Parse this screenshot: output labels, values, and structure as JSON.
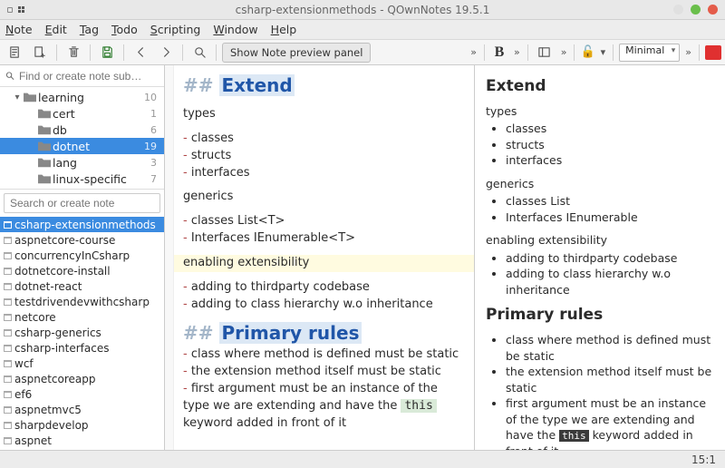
{
  "window": {
    "title": "csharp-extensionmethods - QOwnNotes 19.5.1",
    "close_color": "#e45c4a",
    "min_color": "#e0e0e0",
    "max_color": "#6abf4b"
  },
  "menu": [
    "Note",
    "Edit",
    "Tag",
    "Todo",
    "Scripting",
    "Window",
    "Help"
  ],
  "toolbar": {
    "preview_btn": "Show Note preview panel",
    "layout_sel": "Minimal"
  },
  "sidebar": {
    "find_placeholder": "Find or create note sub…",
    "note_search_placeholder": "Search or create note",
    "tree": [
      {
        "depth": 1,
        "exp": "▾",
        "name": "learning",
        "count": 10,
        "sel": false
      },
      {
        "depth": 2,
        "exp": "",
        "name": "cert",
        "count": 1,
        "sel": false
      },
      {
        "depth": 2,
        "exp": "",
        "name": "db",
        "count": 6,
        "sel": false
      },
      {
        "depth": 2,
        "exp": "",
        "name": "dotnet",
        "count": 19,
        "sel": true
      },
      {
        "depth": 2,
        "exp": "",
        "name": "lang",
        "count": 3,
        "sel": false
      },
      {
        "depth": 2,
        "exp": "",
        "name": "linux-specific",
        "count": 7,
        "sel": false
      }
    ],
    "notes": [
      {
        "name": "csharp-extensionmethods",
        "sel": true
      },
      {
        "name": "aspnetcore-course",
        "sel": false
      },
      {
        "name": "concurrencyInCsharp",
        "sel": false
      },
      {
        "name": "dotnetcore-install",
        "sel": false
      },
      {
        "name": "dotnet-react",
        "sel": false
      },
      {
        "name": "testdrivendevwithcsharp",
        "sel": false
      },
      {
        "name": "netcore",
        "sel": false
      },
      {
        "name": "csharp-generics",
        "sel": false
      },
      {
        "name": "csharp-interfaces",
        "sel": false
      },
      {
        "name": "wcf",
        "sel": false
      },
      {
        "name": "aspnetcoreapp",
        "sel": false
      },
      {
        "name": "ef6",
        "sel": false
      },
      {
        "name": "aspnetmvc5",
        "sel": false
      },
      {
        "name": "sharpdevelop",
        "sel": false
      },
      {
        "name": "aspnet",
        "sel": false
      }
    ]
  },
  "editor": {
    "h1_mark": "##",
    "h1_text": "Extend",
    "sec1_title": "types",
    "sec1_items": [
      "classes",
      "structs",
      "interfaces"
    ],
    "sec2_title": "generics",
    "sec2_items": [
      "classes List<T>",
      "Interfaces IEnumerable<T>"
    ],
    "sec3_title": "enabling extensibility",
    "sec3_items": [
      "adding to thirdparty codebase",
      "adding to class hierarchy w.o inheritance"
    ],
    "h2_mark": "##",
    "h2_text": "Primary rules",
    "rule1": "class where method is defined must be static",
    "rule2": "the extension method itself must be static",
    "rule3a": "first argument must be an instance of the type we are extending and have the ",
    "rule3_code": "this",
    "rule3b": " keyword added in front of it"
  },
  "preview": {
    "h1": "Extend",
    "sec1_title": "types",
    "sec1_items": [
      "classes",
      "structs",
      "interfaces"
    ],
    "sec2_title": "generics",
    "sec2_items": [
      "classes List",
      "Interfaces IEnumerable"
    ],
    "sec3_title": "enabling extensibility",
    "sec3_items": [
      "adding to thirdparty codebase",
      "adding to class hierarchy w.o inheritance"
    ],
    "h2": "Primary rules",
    "rules_a": "class where method is defined must be static",
    "rules_b": "the extension method itself must be static",
    "rules_c1": "first argument must be an instance of the type we are extending and have the ",
    "rules_c_code": "this",
    "rules_c2": " keyword added in front of it"
  },
  "status": {
    "pos": "15:1"
  }
}
